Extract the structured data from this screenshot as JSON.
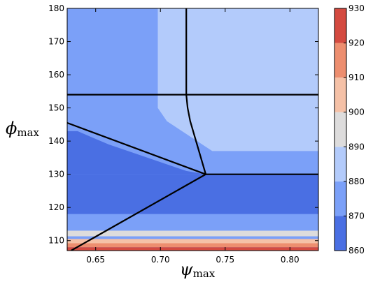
{
  "chart_data": {
    "type": "heatmap",
    "title": "",
    "xlabel": {
      "symbol": "ψ",
      "subscript": "max"
    },
    "ylabel": {
      "symbol": "ϕ",
      "subscript": "max"
    },
    "xlim": [
      0.628,
      0.822
    ],
    "ylim": [
      107,
      180
    ],
    "xticks": [
      "0.65",
      "0.70",
      "0.75",
      "0.80"
    ],
    "yticks": [
      "110",
      "120",
      "130",
      "140",
      "150",
      "160",
      "170",
      "180"
    ],
    "colorbar": {
      "min": 860,
      "max": 930,
      "ticks": [
        "860",
        "870",
        "880",
        "890",
        "900",
        "910",
        "920",
        "930"
      ],
      "bins": [
        {
          "lo": 860,
          "hi": 870,
          "color": "#4a6fe3"
        },
        {
          "lo": 870,
          "hi": 880,
          "color": "#7ba0f8"
        },
        {
          "lo": 880,
          "hi": 890,
          "color": "#b3cbfb"
        },
        {
          "lo": 890,
          "hi": 900,
          "color": "#dddcdc"
        },
        {
          "lo": 900,
          "hi": 910,
          "color": "#f5c1a7"
        },
        {
          "lo": 910,
          "hi": 920,
          "color": "#ed8e6f"
        },
        {
          "lo": 920,
          "hi": 930,
          "color": "#d44a40"
        }
      ]
    },
    "regions": [
      {
        "bin": 1,
        "x": [
          0.628,
          0.698,
          0.698,
          0.628
        ],
        "y": [
          180,
          180,
          154,
          154
        ]
      },
      {
        "bin": 2,
        "x": [
          0.698,
          0.822,
          0.822,
          0.698
        ],
        "y": [
          180,
          180,
          154,
          154
        ]
      },
      {
        "bin": 1,
        "x": [
          0.628,
          0.822,
          0.822,
          0.628
        ],
        "y": [
          154,
          154,
          129,
          129
        ]
      },
      {
        "bin": 2,
        "x": [
          0.698,
          0.822,
          0.822,
          0.74,
          0.705,
          0.698
        ],
        "y": [
          154,
          154,
          137,
          137,
          146,
          150
        ]
      },
      {
        "bin": 0,
        "x": [
          0.628,
          0.636,
          0.66,
          0.69,
          0.72,
          0.735,
          0.628
        ],
        "y": [
          143,
          143,
          139,
          135,
          131,
          130,
          130
        ]
      },
      {
        "bin": 0,
        "x": [
          0.628,
          0.822,
          0.822,
          0.628
        ],
        "y": [
          130,
          130,
          121,
          121
        ]
      },
      {
        "bin": 0,
        "x": [
          0.628,
          0.822,
          0.822,
          0.628
        ],
        "y": [
          121,
          121,
          118,
          118
        ]
      },
      {
        "bin": 1,
        "x": [
          0.628,
          0.822,
          0.822,
          0.628
        ],
        "y": [
          118,
          118,
          113,
          113
        ]
      },
      {
        "bin": 3,
        "x": [
          0.628,
          0.822,
          0.822,
          0.628
        ],
        "y": [
          113,
          113,
          111.3,
          111.3
        ]
      },
      {
        "bin": 1,
        "x": [
          0.628,
          0.822,
          0.822,
          0.628
        ],
        "y": [
          111.3,
          111.3,
          110.5,
          110.5
        ]
      },
      {
        "bin": 4,
        "x": [
          0.628,
          0.822,
          0.822,
          0.628
        ],
        "y": [
          110.5,
          110.5,
          109.2,
          109.2
        ]
      },
      {
        "bin": 5,
        "x": [
          0.628,
          0.822,
          0.822,
          0.628
        ],
        "y": [
          109.2,
          109.2,
          108,
          108
        ]
      },
      {
        "bin": 6,
        "x": [
          0.628,
          0.822,
          0.822,
          0.628
        ],
        "y": [
          108,
          108,
          107,
          107
        ]
      }
    ],
    "boundaries": [
      {
        "x": [
          0.628,
          0.822
        ],
        "y": [
          154,
          154
        ]
      },
      {
        "x": [
          0.72,
          0.72,
          0.721,
          0.723,
          0.735
        ],
        "y": [
          180,
          154,
          150,
          146,
          130
        ]
      },
      {
        "x": [
          0.628,
          0.735
        ],
        "y": [
          145.5,
          130
        ]
      },
      {
        "x": [
          0.735,
          0.822
        ],
        "y": [
          130,
          130
        ]
      },
      {
        "x": [
          0.631,
          0.735
        ],
        "y": [
          107,
          130
        ]
      }
    ]
  }
}
